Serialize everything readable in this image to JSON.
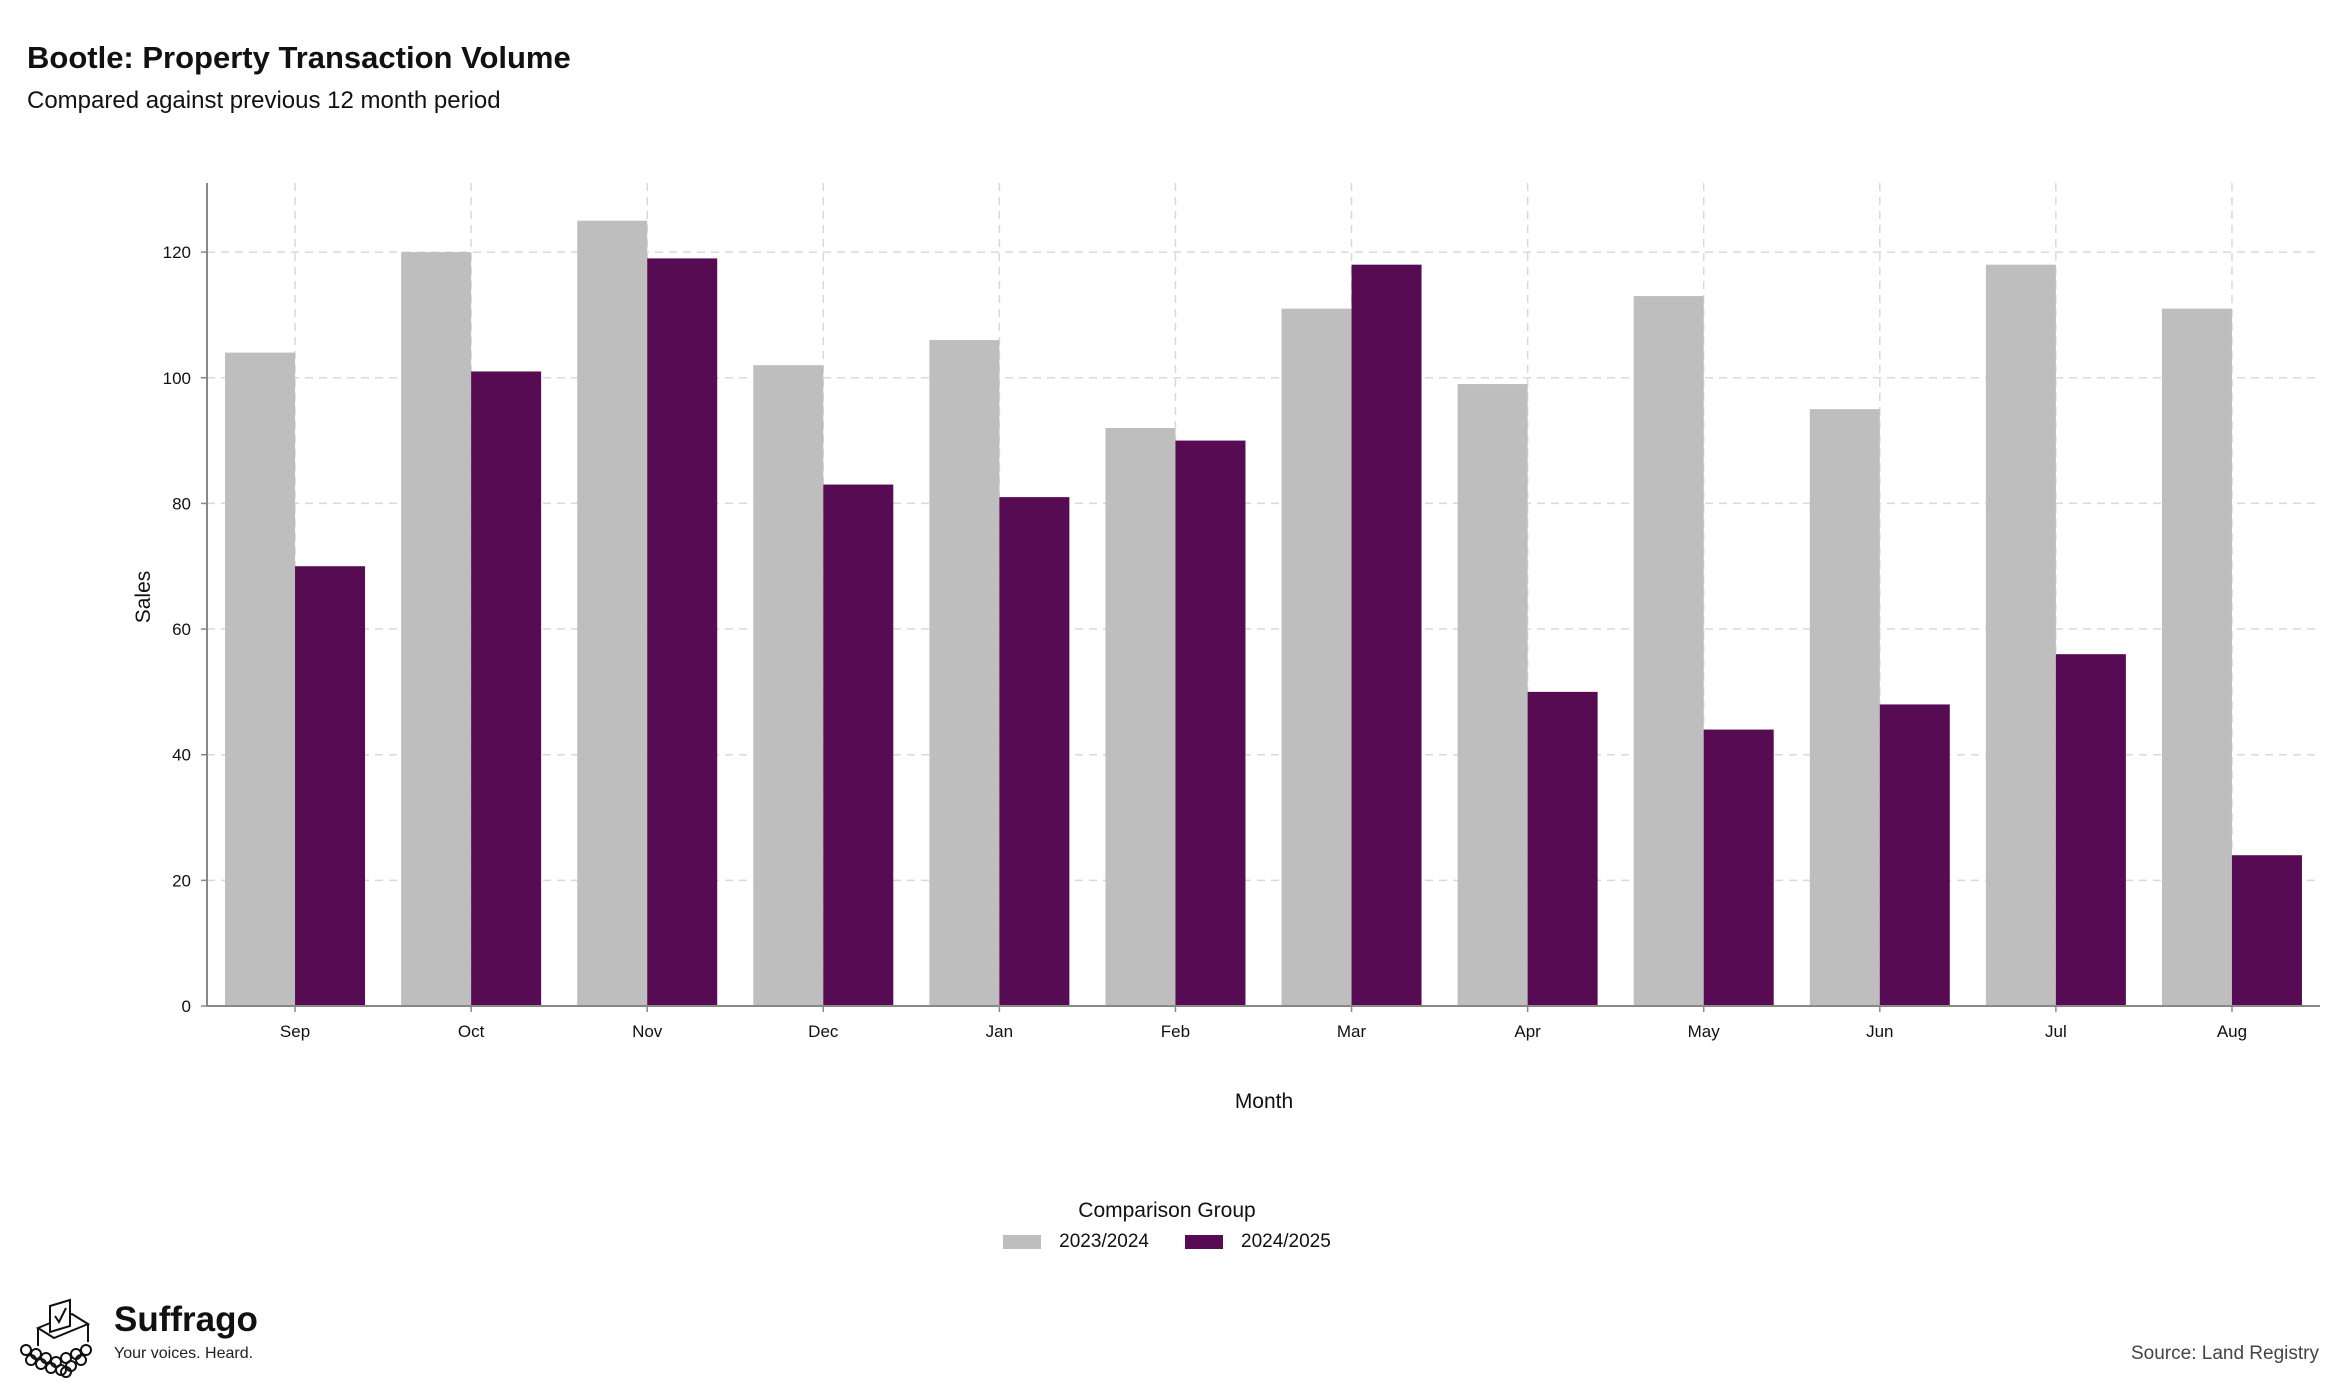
{
  "title": "Bootle: Property Transaction Volume",
  "subtitle": "Compared against previous 12 month period",
  "colors": {
    "series_2023": "#bebebe",
    "series_2024": "#560b52",
    "grid": "#d9d9d9",
    "axis": "#888888"
  },
  "chart_data": {
    "type": "bar",
    "categories": [
      "Sep",
      "Oct",
      "Nov",
      "Dec",
      "Jan",
      "Feb",
      "Mar",
      "Apr",
      "May",
      "Jun",
      "Jul",
      "Aug"
    ],
    "series": [
      {
        "name": "2023/2024",
        "values": [
          104,
          120,
          125,
          102,
          106,
          92,
          111,
          99,
          113,
          95,
          118,
          111
        ]
      },
      {
        "name": "2024/2025",
        "values": [
          70,
          101,
          119,
          83,
          81,
          90,
          118,
          50,
          44,
          48,
          56,
          24
        ]
      }
    ],
    "xlabel": "Month",
    "ylabel": "Sales",
    "ylim": [
      0,
      131
    ],
    "yticks": [
      0,
      20,
      40,
      60,
      80,
      100,
      120
    ],
    "grid": true,
    "legend_title": "Comparison Group",
    "legend_position": "bottom"
  },
  "branding": {
    "name": "Suffrago",
    "tagline": "Your voices. Heard.",
    "logo_icon": "ballot-box-icon"
  },
  "source": "Source: Land Registry"
}
